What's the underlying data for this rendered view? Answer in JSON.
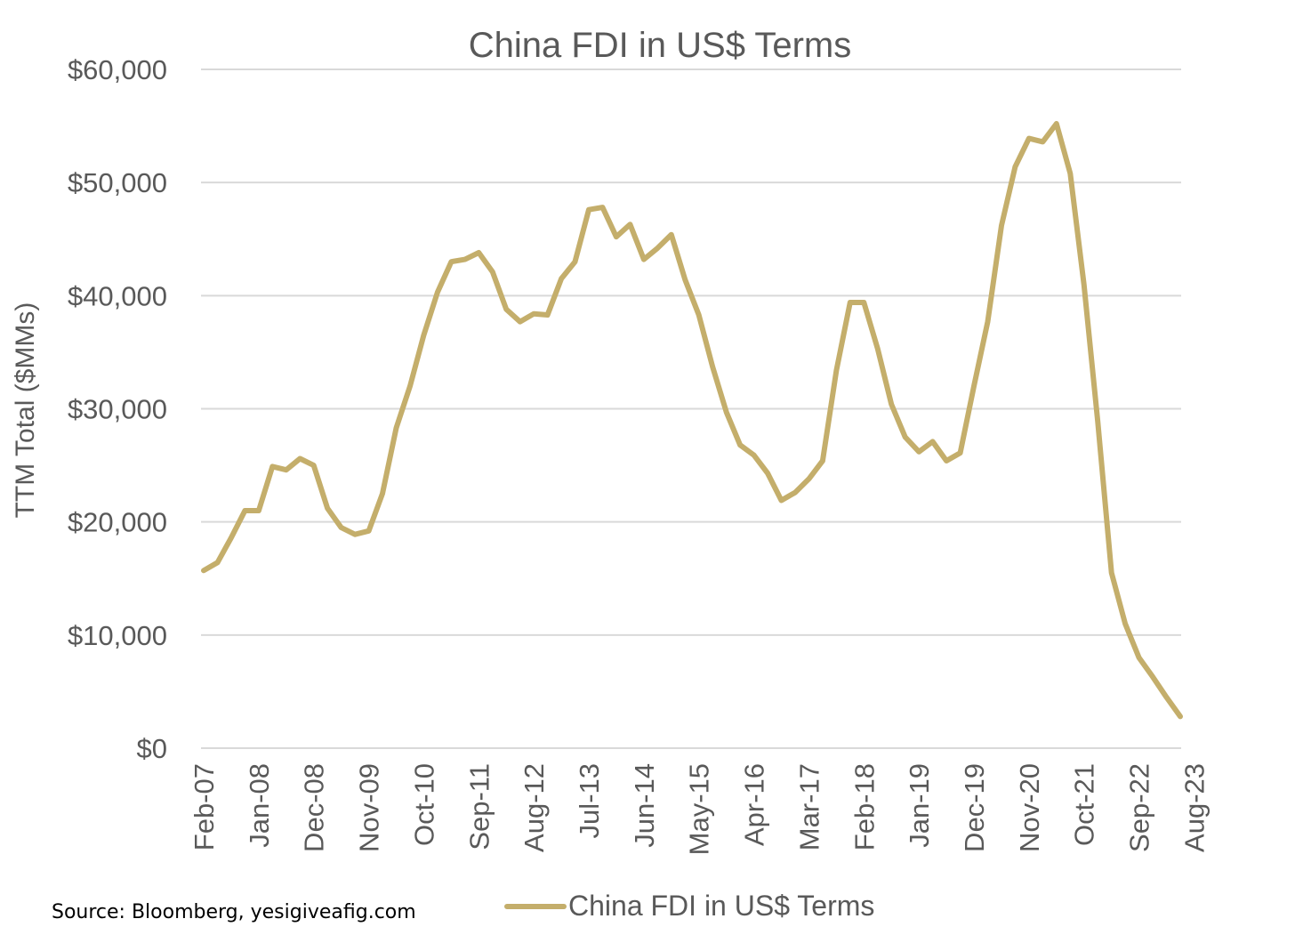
{
  "chart_data": {
    "type": "line",
    "title": "China FDI in US$ Terms",
    "ylabel": "TTM Total ($MMs)",
    "xlabel": "",
    "ylim": [
      0,
      60000
    ],
    "yticks": [
      0,
      10000,
      20000,
      30000,
      40000,
      50000,
      60000
    ],
    "ytick_labels": [
      "$0",
      "$10,000",
      "$20,000",
      "$30,000",
      "$40,000",
      "$50,000",
      "$60,000"
    ],
    "xtick_labels": [
      "Feb-07",
      "Jan-08",
      "Dec-08",
      "Nov-09",
      "Oct-10",
      "Sep-11",
      "Aug-12",
      "Jul-13",
      "Jun-14",
      "May-15",
      "Apr-16",
      "Mar-17",
      "Feb-18",
      "Jan-19",
      "Dec-19",
      "Nov-20",
      "Oct-21",
      "Sep-22",
      "Aug-23"
    ],
    "x_start": "Feb-07",
    "x_interval_months": 3,
    "grid": true,
    "legend_position": "bottom",
    "series": [
      {
        "name": "China FDI in US$ Terms",
        "color": "#C4AE6B",
        "values": [
          15700,
          16400,
          18600,
          21000,
          21000,
          24900,
          24600,
          25600,
          25000,
          21200,
          19500,
          18900,
          19200,
          22500,
          28300,
          32000,
          36500,
          40300,
          43000,
          43200,
          43800,
          42100,
          38800,
          37700,
          38400,
          38300,
          41500,
          43000,
          47600,
          47800,
          45200,
          46300,
          43200,
          44200,
          45400,
          41400,
          38300,
          33700,
          29700,
          26800,
          25900,
          24300,
          21900,
          22600,
          23800,
          25400,
          33400,
          39400,
          39400,
          35300,
          30400,
          27500,
          26200,
          27100,
          25400,
          26100,
          32000,
          37700,
          46200,
          51400,
          53900,
          53600,
          55200,
          50800,
          41000,
          28900,
          15500,
          11000,
          8000,
          6300,
          4500,
          2800
        ]
      }
    ]
  },
  "source_text": "Source: Bloomberg, yesigiveafig.com"
}
